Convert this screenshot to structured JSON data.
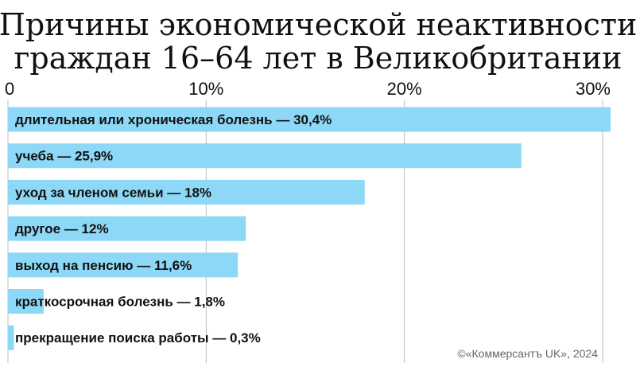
{
  "chart_data": {
    "type": "bar",
    "orientation": "horizontal",
    "title_lines": [
      "Причины экономической неактивности",
      "граждан 16–64 лет в Великобритании"
    ],
    "xlim": [
      0,
      30
    ],
    "x_ticks": [
      0,
      10,
      20,
      30
    ],
    "x_tick_labels": [
      "0",
      "10%",
      "20%",
      "30%"
    ],
    "grid": "vertical",
    "bar_color": "#8dd8f6",
    "categories": [
      "длительная или хроническая болезнь — 30,4%",
      "учеба — 25,9%",
      "уход за членом семьи — 18%",
      "другое — 12%",
      "выход на пенсию — 11,6%",
      "краткосрочная болезнь — 1,8%",
      "прекращение поиска работы — 0,3%"
    ],
    "values": [
      30.4,
      25.9,
      18,
      12,
      11.6,
      1.8,
      0.3
    ]
  },
  "credit": "©«Коммерсантъ UK», 2024"
}
